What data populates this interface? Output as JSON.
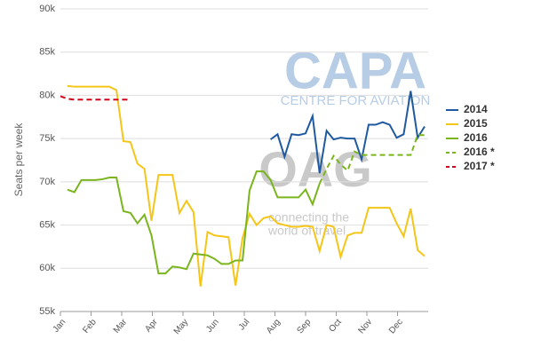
{
  "chart_data": {
    "type": "line",
    "y_label": "Seats per week",
    "watermarks": [
      "CAPA",
      "CENTRE FOR AVIATION",
      "OAG",
      "connecting the",
      "world of travel"
    ],
    "x": [
      0,
      1,
      2,
      3,
      4,
      5,
      6,
      7,
      8,
      9,
      10,
      11,
      12,
      13,
      14,
      15,
      16,
      17,
      18,
      19,
      20,
      21,
      22,
      23,
      24,
      25,
      26,
      27,
      28,
      29,
      30,
      31,
      32,
      33,
      34,
      35,
      36,
      37,
      38,
      39,
      40,
      41,
      42,
      43,
      44,
      45,
      46,
      47,
      48,
      49,
      50,
      51,
      52
    ],
    "xlim": [
      0,
      52.5
    ],
    "xticks": [
      {
        "value": 0,
        "label": "Jan"
      },
      {
        "value": 4.38,
        "label": "Feb"
      },
      {
        "value": 8.75,
        "label": "Mar"
      },
      {
        "value": 13.13,
        "label": "Apr"
      },
      {
        "value": 17.5,
        "label": "May"
      },
      {
        "value": 21.88,
        "label": "Jun"
      },
      {
        "value": 26.25,
        "label": "Jul"
      },
      {
        "value": 30.63,
        "label": "Aug"
      },
      {
        "value": 35,
        "label": "Sep"
      },
      {
        "value": 39.38,
        "label": "Oct"
      },
      {
        "value": 43.75,
        "label": "Nov"
      },
      {
        "value": 48.13,
        "label": "Dec"
      }
    ],
    "ylim": [
      55000,
      90000
    ],
    "yticks": [
      {
        "value": 55000,
        "label": "55k"
      },
      {
        "value": 60000,
        "label": "60k"
      },
      {
        "value": 65000,
        "label": "65k"
      },
      {
        "value": 70000,
        "label": "70k"
      },
      {
        "value": 75000,
        "label": "75k"
      },
      {
        "value": 80000,
        "label": "80k"
      },
      {
        "value": 85000,
        "label": "85k"
      },
      {
        "value": 90000,
        "label": "90k"
      }
    ],
    "grid": true,
    "legend": "right",
    "series": [
      {
        "name": "2014",
        "color": "#1f5aa0",
        "dashed": false,
        "values": [
          null,
          null,
          null,
          null,
          null,
          null,
          null,
          null,
          null,
          null,
          null,
          null,
          null,
          null,
          null,
          null,
          null,
          null,
          null,
          null,
          null,
          null,
          null,
          null,
          null,
          null,
          null,
          null,
          null,
          null,
          74900,
          75500,
          72900,
          75500,
          75400,
          75600,
          77600,
          71000,
          75900,
          74900,
          75100,
          75000,
          75000,
          72600,
          76600,
          76600,
          76900,
          76600,
          75100,
          75500,
          80500,
          75100,
          76400
        ]
      },
      {
        "name": "2015",
        "color": "#f5c518",
        "dashed": false,
        "values": [
          null,
          81100,
          81000,
          81000,
          81000,
          81000,
          81000,
          81000,
          80600,
          74700,
          74600,
          72100,
          71500,
          65500,
          70800,
          70800,
          70800,
          66400,
          67800,
          66500,
          57900,
          64200,
          63800,
          63700,
          63600,
          58000,
          63500,
          66300,
          65000,
          65800,
          66000,
          65200,
          65000,
          64800,
          64800,
          64900,
          64800,
          62000,
          65000,
          64800,
          61300,
          63800,
          64100,
          64100,
          67000,
          67000,
          67000,
          67000,
          65200,
          63700,
          66900,
          62100,
          61400
        ]
      },
      {
        "name": "2016",
        "color": "#7ab51d",
        "dashed": false,
        "values": [
          null,
          69100,
          68800,
          70200,
          70200,
          70200,
          70300,
          70500,
          70500,
          66600,
          66400,
          65200,
          66200,
          63800,
          59400,
          59400,
          60200,
          60100,
          59900,
          61700,
          61600,
          61500,
          61100,
          60500,
          60500,
          60900,
          60900,
          69000,
          71200,
          71200,
          70200,
          68200,
          68200,
          68200,
          68200,
          69100,
          67400,
          69800,
          null,
          null,
          null,
          null,
          null,
          null,
          null,
          null,
          null,
          null,
          null,
          null,
          null,
          null,
          null
        ]
      },
      {
        "name": "2016 *",
        "color": "#7ab51d",
        "dashed": true,
        "values": [
          null,
          null,
          null,
          null,
          null,
          null,
          null,
          null,
          null,
          null,
          null,
          null,
          null,
          null,
          null,
          null,
          null,
          null,
          null,
          null,
          null,
          null,
          null,
          null,
          null,
          null,
          null,
          null,
          null,
          null,
          null,
          null,
          null,
          null,
          null,
          null,
          null,
          69800,
          71500,
          73000,
          72000,
          71300,
          73500,
          73100,
          73100,
          73100,
          73100,
          73100,
          73100,
          73100,
          73100,
          75400,
          75400
        ]
      },
      {
        "name": "2017 *",
        "color": "#d0021b",
        "dashed": true,
        "values": [
          79900,
          79600,
          79500,
          79500,
          79500,
          79500,
          79500,
          79500,
          79500,
          79500,
          79500,
          null,
          null,
          null,
          null,
          null,
          null,
          null,
          null,
          null,
          null,
          null,
          null,
          null,
          null,
          null,
          null,
          null,
          null,
          null,
          null,
          null,
          null,
          null,
          null,
          null,
          null,
          null,
          null,
          null,
          null,
          null,
          null,
          null,
          null,
          null,
          null,
          null,
          null,
          null,
          null,
          null,
          null
        ]
      }
    ]
  }
}
